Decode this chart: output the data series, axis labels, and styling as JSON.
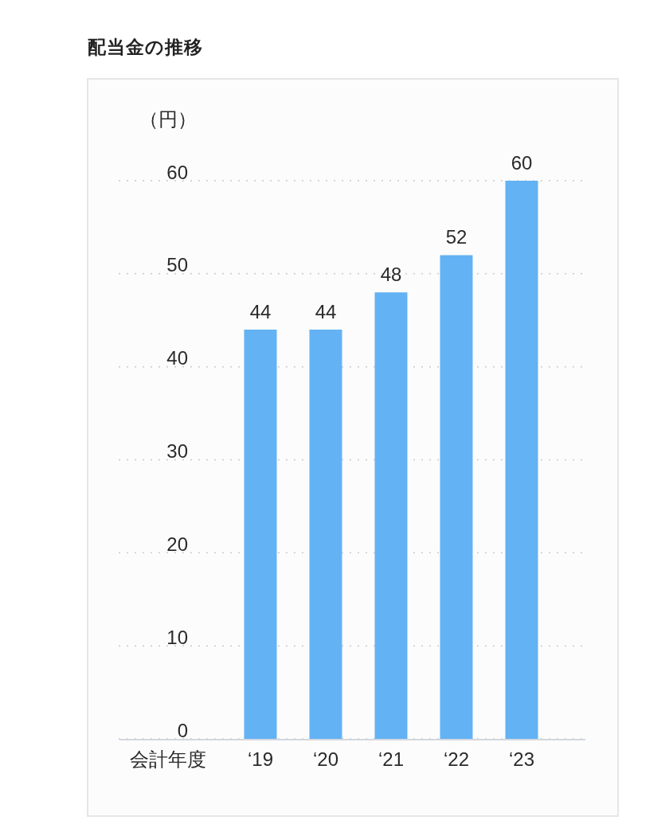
{
  "chart_data": {
    "type": "bar",
    "title": "配当金の推移",
    "ylabel": "（円）",
    "xlabel": "会計年度",
    "categories": [
      "‘19",
      "‘20",
      "‘21",
      "‘22",
      "‘23"
    ],
    "values": [
      44,
      44,
      48,
      52,
      60
    ],
    "color": "#62b2f4",
    "ylim": [
      0,
      60
    ],
    "yticks": [
      0,
      10,
      20,
      30,
      40,
      50,
      60
    ],
    "grid": "y",
    "data_labels": true
  }
}
